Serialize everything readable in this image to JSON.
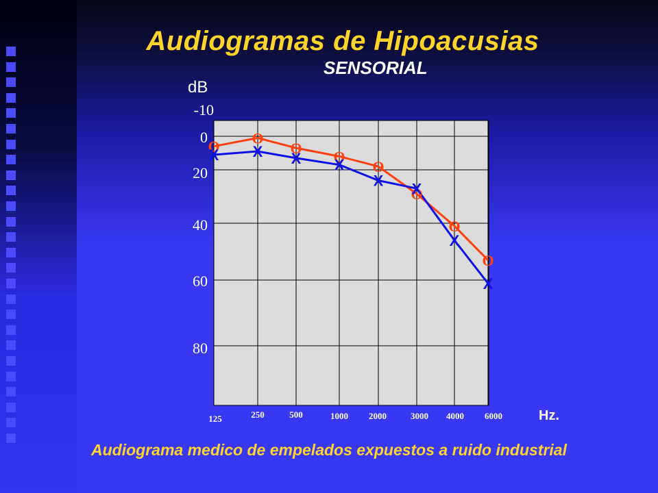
{
  "slide": {
    "title": "Audiogramas de Hipoacusias",
    "subtitle": "SENSORIAL",
    "caption": "Audiograma medico de empelados expuestos a ruido industrial"
  },
  "chart_data": {
    "type": "line",
    "ylabel": "dB",
    "xlabel": "Hz.",
    "y_ticks": [
      "-10",
      "0",
      "20",
      "40",
      "60",
      "80"
    ],
    "x": [
      "125",
      "250",
      "500",
      "1000",
      "2000",
      "3000",
      "4000",
      "6000"
    ],
    "y_range": [
      -10,
      100
    ],
    "y_inverted": true,
    "grid": true,
    "series": [
      {
        "marker": "O",
        "color": "#ff4010",
        "values": [
          6,
          1,
          7,
          12,
          18,
          29,
          41,
          53
        ]
      },
      {
        "marker": "X",
        "color": "#1010e8",
        "values": [
          11,
          9,
          13,
          17,
          24,
          27,
          46,
          61
        ]
      }
    ]
  }
}
